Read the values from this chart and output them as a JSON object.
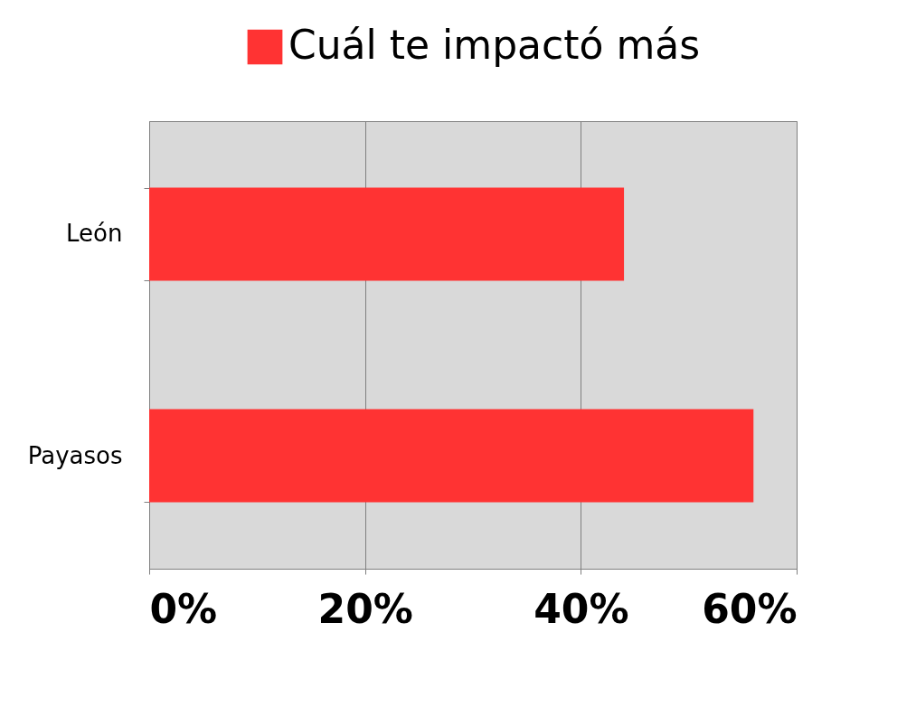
{
  "chart_data": {
    "type": "bar",
    "orientation": "horizontal",
    "categories": [
      "León",
      "Payasos"
    ],
    "series": [
      {
        "name": "Cuál te impactó más",
        "color": "#ff3333",
        "values": [
          44,
          56
        ]
      }
    ],
    "xlim": [
      0,
      60
    ],
    "xticks": [
      {
        "value": 0,
        "label": "0%"
      },
      {
        "value": 20,
        "label": "20%"
      },
      {
        "value": 40,
        "label": "40%"
      },
      {
        "value": 60,
        "label": "60%"
      }
    ],
    "grid": "x",
    "legend": "top"
  }
}
